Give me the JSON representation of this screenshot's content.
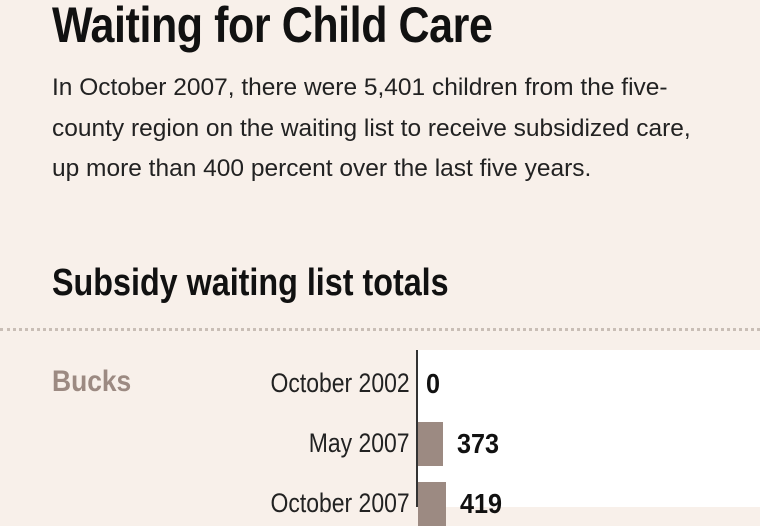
{
  "title": "Waiting for Child Care",
  "intro": "In October 2007, there were 5,401 children from the five-county region on the waiting list to receive subsidized care, up more than 400 percent over the last five years.",
  "chart_data": {
    "type": "bar",
    "title": "Subsidy waiting list totals",
    "group": "Bucks",
    "categories": [
      "October 2002",
      "May 2007",
      "October 2007"
    ],
    "values": [
      0,
      373,
      419
    ],
    "bar_color": "#9c8a82"
  }
}
